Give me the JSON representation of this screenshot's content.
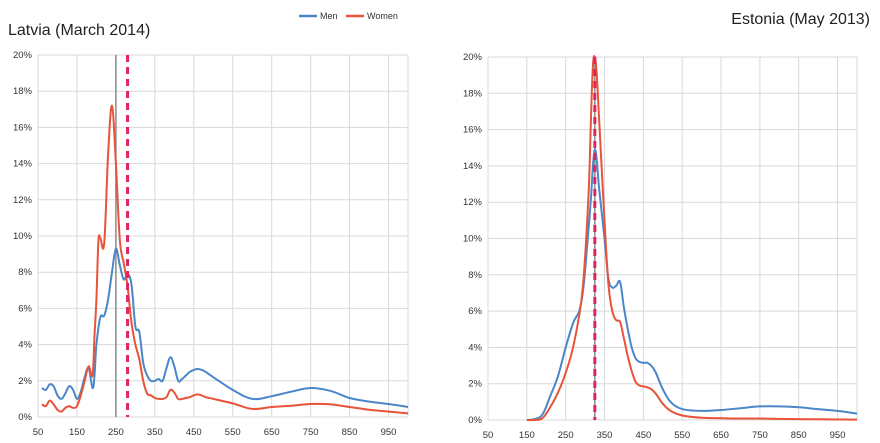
{
  "legend": {
    "men": "Men",
    "women": "Women"
  },
  "colors": {
    "men": "#4a86c8",
    "women": "#e8533a",
    "marker": "#e0245e",
    "grid": "#d9d9d9"
  },
  "chart_data": [
    {
      "type": "line",
      "title": "Latvia (March 2014)",
      "xlabel": "",
      "ylabel": "",
      "xlim": [
        50,
        1000
      ],
      "ylim": [
        0,
        20
      ],
      "x_ticks": [
        "50",
        "150",
        "250",
        "350",
        "450",
        "550",
        "650",
        "750",
        "850",
        "950"
      ],
      "y_ticks": [
        "0%",
        "2%",
        "4%",
        "6%",
        "8%",
        "10%",
        "12%",
        "14%",
        "16%",
        "18%",
        "20%"
      ],
      "grid": true,
      "solid_marker_x": 250,
      "dashed_marker_x": 280,
      "series": [
        {
          "name": "Men",
          "color": "#4a86c8",
          "x": [
            60,
            70,
            80,
            90,
            100,
            110,
            120,
            130,
            140,
            150,
            160,
            170,
            180,
            190,
            195,
            200,
            210,
            220,
            230,
            240,
            250,
            260,
            270,
            280,
            290,
            300,
            310,
            320,
            330,
            340,
            350,
            360,
            370,
            380,
            390,
            400,
            410,
            420,
            430,
            440,
            450,
            460,
            470,
            480,
            500,
            550,
            600,
            650,
            700,
            750,
            800,
            850,
            900,
            950,
            1000
          ],
          "y": [
            1.6,
            1.5,
            1.8,
            1.7,
            1.2,
            1.0,
            1.3,
            1.7,
            1.5,
            1.0,
            1.4,
            2.2,
            2.7,
            1.6,
            2.3,
            4.0,
            5.5,
            5.6,
            6.5,
            8.0,
            9.3,
            8.4,
            7.6,
            7.9,
            7.3,
            5.0,
            4.7,
            3.0,
            2.3,
            2.0,
            2.0,
            2.1,
            2.0,
            2.7,
            3.3,
            2.8,
            2.0,
            2.1,
            2.3,
            2.5,
            2.6,
            2.65,
            2.6,
            2.5,
            2.2,
            1.5,
            1.0,
            1.15,
            1.4,
            1.6,
            1.45,
            1.05,
            0.85,
            0.72,
            0.55
          ]
        },
        {
          "name": "Women",
          "color": "#e8533a",
          "x": [
            60,
            70,
            80,
            90,
            100,
            110,
            120,
            130,
            140,
            150,
            160,
            170,
            180,
            190,
            195,
            200,
            205,
            210,
            220,
            230,
            240,
            250,
            260,
            270,
            280,
            290,
            300,
            310,
            320,
            330,
            340,
            350,
            360,
            370,
            380,
            390,
            400,
            410,
            420,
            430,
            440,
            450,
            460,
            470,
            480,
            500,
            550,
            600,
            650,
            700,
            750,
            800,
            850,
            900,
            950,
            1000
          ],
          "y": [
            0.7,
            0.6,
            0.9,
            0.7,
            0.4,
            0.3,
            0.5,
            0.6,
            0.5,
            0.6,
            1.2,
            2.0,
            2.8,
            2.3,
            4.5,
            6.5,
            9.7,
            9.9,
            9.6,
            14.5,
            17.2,
            14.0,
            9.8,
            8.5,
            7.2,
            5.2,
            4.0,
            3.2,
            2.0,
            1.3,
            1.2,
            1.05,
            1.0,
            1.0,
            1.1,
            1.5,
            1.35,
            1.0,
            1.0,
            1.05,
            1.1,
            1.2,
            1.25,
            1.2,
            1.1,
            1.0,
            0.75,
            0.45,
            0.55,
            0.62,
            0.72,
            0.7,
            0.55,
            0.4,
            0.3,
            0.2
          ]
        }
      ]
    },
    {
      "type": "line",
      "title": "Estonia (May 2013)",
      "xlabel": "",
      "ylabel": "",
      "xlim": [
        50,
        1000
      ],
      "ylim": [
        0,
        20
      ],
      "x_ticks": [
        "50",
        "150",
        "250",
        "350",
        "450",
        "550",
        "650",
        "750",
        "850",
        "950"
      ],
      "y_ticks": [
        "0%",
        "2%",
        "4%",
        "6%",
        "8%",
        "10%",
        "12%",
        "14%",
        "16%",
        "18%",
        "20%"
      ],
      "grid": true,
      "solid_marker_x": 325,
      "dashed_marker_x": 325,
      "series": [
        {
          "name": "Men",
          "color": "#4a86c8",
          "x": [
            150,
            170,
            190,
            210,
            230,
            250,
            270,
            285,
            295,
            305,
            315,
            320,
            325,
            330,
            335,
            340,
            350,
            360,
            370,
            380,
            390,
            400,
            410,
            420,
            430,
            440,
            450,
            460,
            470,
            480,
            490,
            500,
            520,
            550,
            600,
            650,
            700,
            750,
            800,
            850,
            900,
            950,
            1000
          ],
          "y": [
            0,
            0.05,
            0.3,
            1.3,
            2.4,
            4.0,
            5.4,
            6.0,
            7.2,
            9.5,
            12.2,
            14.0,
            14.9,
            14.3,
            13.0,
            12.0,
            10.0,
            7.8,
            7.3,
            7.4,
            7.6,
            6.2,
            5.0,
            4.0,
            3.4,
            3.2,
            3.15,
            3.15,
            3.0,
            2.7,
            2.2,
            1.7,
            1.0,
            0.6,
            0.5,
            0.55,
            0.65,
            0.75,
            0.75,
            0.7,
            0.6,
            0.5,
            0.35
          ]
        },
        {
          "name": "Women",
          "color": "#e8533a",
          "x": [
            150,
            170,
            190,
            210,
            230,
            250,
            270,
            290,
            300,
            310,
            315,
            320,
            325,
            330,
            335,
            340,
            350,
            360,
            370,
            380,
            390,
            400,
            410,
            420,
            430,
            440,
            450,
            460,
            470,
            480,
            490,
            500,
            520,
            550,
            600,
            650,
            700,
            750,
            800,
            850,
            900,
            950,
            1000
          ],
          "y": [
            0,
            0,
            0.1,
            0.7,
            1.5,
            2.6,
            4.1,
            6.5,
            9.0,
            13.0,
            16.5,
            19.5,
            20.0,
            19.0,
            17.0,
            15.0,
            11.0,
            7.5,
            6.0,
            5.5,
            5.4,
            4.5,
            3.5,
            2.7,
            2.1,
            1.9,
            1.85,
            1.8,
            1.7,
            1.5,
            1.2,
            0.9,
            0.5,
            0.25,
            0.12,
            0.1,
            0.08,
            0.08,
            0.06,
            0.05,
            0.04,
            0.03,
            0.02
          ]
        }
      ]
    }
  ]
}
